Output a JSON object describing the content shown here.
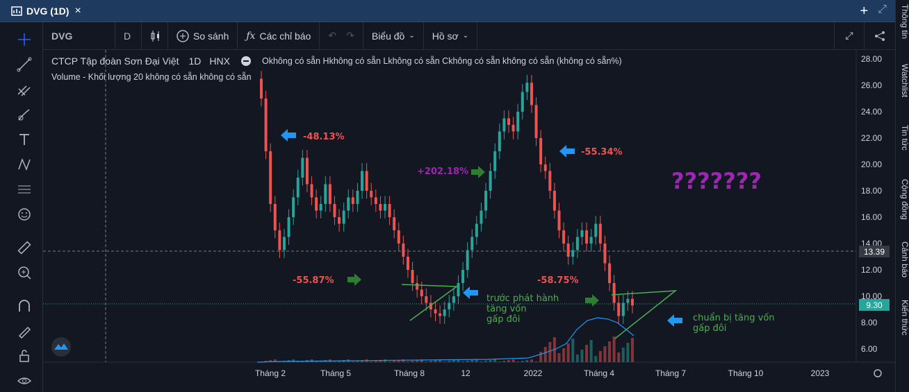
{
  "window": {
    "title": "DVG (1D)",
    "close": "×",
    "add": "+",
    "expand": "⤢"
  },
  "toolbar": {
    "symbol": "DVG",
    "interval": "D",
    "compare": "So sánh",
    "indicators": "Các chỉ báo",
    "chart": "Biểu đồ",
    "profile": "Hồ sơ"
  },
  "legend": {
    "name": "CTCP Tập đoàn Sơn Đại Việt",
    "interval": "1D",
    "exchange": "HNX",
    "ohlc": "Okhông có sẵn Hkhông có sẵn Lkhông có sẵn Ckhông có sẵn không có sẵn (không có sẵn%)",
    "volume": "Volume - Khối lượng 20 không có sẵn không có sẵn"
  },
  "price_axis": [
    "28.00",
    "26.00",
    "24.00",
    "22.00",
    "20.00",
    "18.00",
    "16.00",
    "14.00",
    "12.00",
    "10.00",
    "8.00",
    "6.00"
  ],
  "crosshair_price": "13.39",
  "last_price": "9.30",
  "time_axis": [
    "Tháng 2",
    "Tháng 5",
    "Tháng 8",
    "12",
    "2022",
    "Tháng 4",
    "Tháng 7",
    "Tháng 10",
    "2023"
  ],
  "annotations": {
    "a1": "-48.13%",
    "a2": "+202.18%",
    "a3": "-55.34%",
    "a4": "???????",
    "a5": "-55.87%",
    "a6": "-58.75%",
    "a7": "trước phát hành\ntăng vốn\ngấp đôi",
    "a8": "chuẩn bị tăng vốn\ngấp đôi"
  },
  "right_tabs": [
    "Thông tin",
    "Watchlist",
    "Tin tức",
    "Cộng đồng",
    "Cảnh báo",
    "Kiến thức"
  ],
  "colors": {
    "bg": "#131722",
    "up": "#26a69a",
    "down": "#ef5350",
    "volume_line": "#2196f3",
    "annotation_red": "#ef5350",
    "annotation_green": "#4caf50",
    "annotation_purple": "#9c27b0",
    "arrow_blue": "#2196f3",
    "arrow_green": "#2e7d32"
  },
  "chart_data": {
    "type": "candlestick",
    "title": "CTCP Tập đoàn Sơn Đại Việt",
    "ylim": [
      5,
      28.5
    ],
    "series": [
      {
        "name": "DVG",
        "close": [
          25.0,
          21.0,
          17.0,
          15.0,
          13.5,
          14.5,
          16.0,
          17.5,
          19.0,
          20.5,
          18.5,
          17.5,
          16.5,
          17.0,
          18.5,
          17.0,
          16.0,
          15.5,
          16.5,
          17.5,
          17.0,
          18.0,
          19.5,
          18.0,
          17.5,
          17.0,
          16.5,
          17.0,
          16.0,
          15.0,
          14.0,
          13.0,
          12.0,
          11.0,
          10.5,
          10.0,
          9.5,
          9.0,
          8.7,
          8.5,
          9.0,
          9.5,
          10.0,
          11.0,
          12.0,
          13.5,
          14.5,
          15.5,
          16.5,
          18.0,
          19.5,
          21.0,
          22.5,
          23.5,
          23.0,
          22.5,
          24.0,
          25.5,
          26.2,
          24.5,
          22.0,
          20.0,
          19.5,
          18.0,
          16.5,
          15.0,
          14.0,
          13.0,
          13.5,
          14.5,
          15.0,
          14.0,
          14.5,
          15.5,
          14.0,
          12.5,
          11.0,
          9.5,
          8.5,
          9.5,
          9.8,
          9.3
        ]
      }
    ],
    "annotations": [
      "-48.13%",
      "+202.18%",
      "-55.34%",
      "-55.87%",
      "-58.75%"
    ]
  }
}
